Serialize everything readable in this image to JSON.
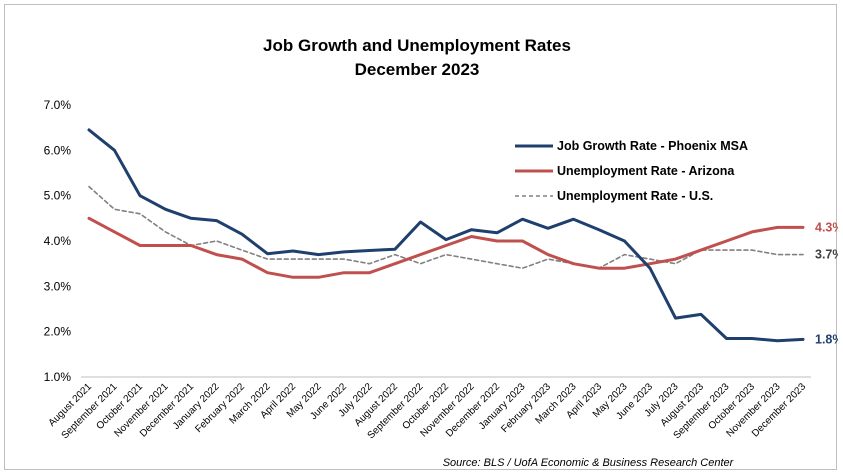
{
  "chart_data": {
    "type": "line",
    "title": "Job Growth and Unemployment Rates",
    "subtitle": "December 2023",
    "xlabel": "",
    "ylabel": "",
    "ylim": [
      1.0,
      7.0
    ],
    "yticks": [
      "1.0%",
      "2.0%",
      "3.0%",
      "4.0%",
      "5.0%",
      "6.0%",
      "7.0%"
    ],
    "grid": false,
    "legend_position": "top-right",
    "source": "Source: BLS / UofA Economic & Business Research Center",
    "categories": [
      "August 2021",
      "September 2021",
      "October 2021",
      "November 2021",
      "December 2021",
      "January 2022",
      "February 2022",
      "March 2022",
      "April 2022",
      "May 2022",
      "June 2022",
      "July 2022",
      "August 2022",
      "September 2022",
      "October 2022",
      "November 2022",
      "December 2022",
      "January 2023",
      "February 2023",
      "March 2023",
      "April 2023",
      "May 2023",
      "June 2023",
      "July 2023",
      "August 2023",
      "September 2023",
      "October 2023",
      "November 2023",
      "December 2023"
    ],
    "series": [
      {
        "name": "Job Growth Rate - Phoenix MSA",
        "color": "#1f3f6e",
        "style": "solid",
        "end_label": "1.8%",
        "values": [
          6.45,
          6.0,
          5.0,
          4.7,
          4.5,
          4.45,
          4.15,
          3.72,
          3.78,
          3.7,
          3.76,
          3.79,
          3.82,
          4.42,
          4.03,
          4.25,
          4.18,
          4.48,
          4.28,
          4.48,
          4.25,
          4.0,
          3.4,
          2.3,
          2.38,
          1.85,
          1.85,
          1.8,
          1.83
        ]
      },
      {
        "name": "Unemployment Rate - Arizona",
        "color": "#c0504d",
        "style": "solid",
        "end_label": "4.3%",
        "values": [
          4.5,
          4.2,
          3.9,
          3.9,
          3.9,
          3.7,
          3.6,
          3.3,
          3.2,
          3.2,
          3.3,
          3.3,
          3.5,
          3.7,
          3.9,
          4.1,
          4.0,
          4.0,
          3.7,
          3.5,
          3.4,
          3.4,
          3.5,
          3.6,
          3.8,
          4.0,
          4.2,
          4.3,
          4.3
        ]
      },
      {
        "name": "Unemployment Rate - U.S.",
        "color": "#808080",
        "style": "dashed",
        "end_label": "3.7%",
        "values": [
          5.2,
          4.7,
          4.6,
          4.2,
          3.9,
          4.0,
          3.8,
          3.6,
          3.6,
          3.6,
          3.6,
          3.5,
          3.7,
          3.5,
          3.7,
          3.6,
          3.5,
          3.4,
          3.6,
          3.5,
          3.4,
          3.7,
          3.6,
          3.5,
          3.8,
          3.8,
          3.8,
          3.7,
          3.7
        ]
      }
    ]
  }
}
